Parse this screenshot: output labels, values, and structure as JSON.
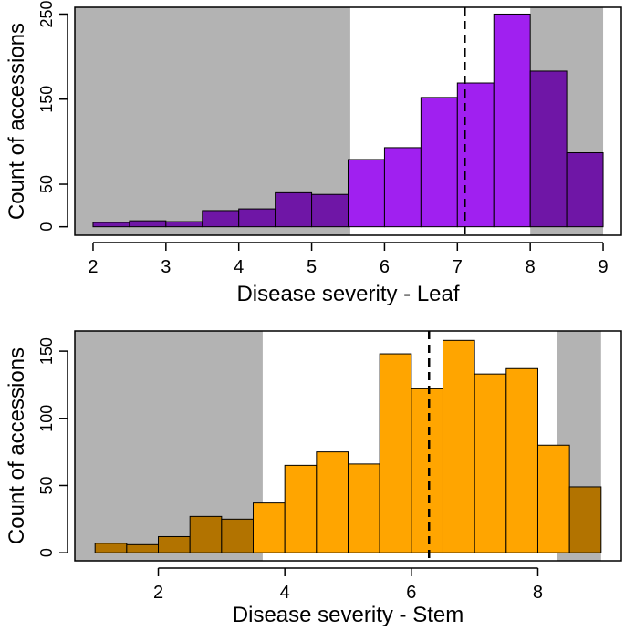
{
  "colors": {
    "shade": "#b3b3b3",
    "leaf_bar": "#a020f0",
    "leaf_bar_dark": "#6f16a6",
    "stem_bar": "#ffa500",
    "stem_bar_dark": "#b27300",
    "line": "#000000",
    "background": "#ffffff"
  },
  "chart_data": [
    {
      "type": "bar",
      "subtype": "histogram",
      "title": "",
      "xlabel": "Disease severity - Leaf",
      "ylabel": "Count of accessions",
      "xlim": [
        1.75,
        9.25
      ],
      "ylim": [
        -10,
        258
      ],
      "x_ticks": [
        2,
        3,
        4,
        5,
        6,
        7,
        8,
        9
      ],
      "y_ticks": [
        0,
        50,
        150,
        250
      ],
      "bins": [
        {
          "x0": 2.0,
          "x1": 2.5,
          "count": 5
        },
        {
          "x0": 2.5,
          "x1": 3.0,
          "count": 7
        },
        {
          "x0": 3.0,
          "x1": 3.5,
          "count": 6
        },
        {
          "x0": 3.5,
          "x1": 4.0,
          "count": 19
        },
        {
          "x0": 4.0,
          "x1": 4.5,
          "count": 21
        },
        {
          "x0": 4.5,
          "x1": 5.0,
          "count": 40
        },
        {
          "x0": 5.0,
          "x1": 5.5,
          "count": 38
        },
        {
          "x0": 5.5,
          "x1": 6.0,
          "count": 79
        },
        {
          "x0": 6.0,
          "x1": 6.5,
          "count": 93
        },
        {
          "x0": 6.5,
          "x1": 7.0,
          "count": 152
        },
        {
          "x0": 7.0,
          "x1": 7.5,
          "count": 169
        },
        {
          "x0": 7.5,
          "x1": 8.0,
          "count": 250
        },
        {
          "x0": 8.0,
          "x1": 8.5,
          "count": 183
        },
        {
          "x0": 8.5,
          "x1": 9.0,
          "count": 87
        }
      ],
      "shaded_regions": [
        [
          1.75,
          5.53
        ],
        [
          8.0,
          9.0
        ]
      ],
      "vline": 7.1,
      "grid": false
    },
    {
      "type": "bar",
      "subtype": "histogram",
      "title": "",
      "xlabel": "Disease severity - Stem",
      "ylabel": "Count of accessions",
      "xlim": [
        0.68,
        9.32
      ],
      "ylim": [
        -6,
        165
      ],
      "x_ticks": [
        2,
        4,
        6,
        8
      ],
      "y_ticks": [
        0,
        50,
        100,
        150
      ],
      "bins": [
        {
          "x0": 1.0,
          "x1": 1.5,
          "count": 7
        },
        {
          "x0": 1.5,
          "x1": 2.0,
          "count": 6
        },
        {
          "x0": 2.0,
          "x1": 2.5,
          "count": 12
        },
        {
          "x0": 2.5,
          "x1": 3.0,
          "count": 27
        },
        {
          "x0": 3.0,
          "x1": 3.5,
          "count": 25
        },
        {
          "x0": 3.5,
          "x1": 4.0,
          "count": 37
        },
        {
          "x0": 4.0,
          "x1": 4.5,
          "count": 65
        },
        {
          "x0": 4.5,
          "x1": 5.0,
          "count": 75
        },
        {
          "x0": 5.0,
          "x1": 5.5,
          "count": 66
        },
        {
          "x0": 5.5,
          "x1": 6.0,
          "count": 148
        },
        {
          "x0": 6.0,
          "x1": 6.5,
          "count": 122
        },
        {
          "x0": 6.5,
          "x1": 7.0,
          "count": 158
        },
        {
          "x0": 7.0,
          "x1": 7.5,
          "count": 133
        },
        {
          "x0": 7.5,
          "x1": 8.0,
          "count": 137
        },
        {
          "x0": 8.0,
          "x1": 8.5,
          "count": 80
        },
        {
          "x0": 8.5,
          "x1": 9.0,
          "count": 49
        }
      ],
      "shaded_regions": [
        [
          0.68,
          3.65
        ],
        [
          8.3,
          9.0
        ]
      ],
      "vline": 6.28,
      "grid": false
    }
  ]
}
